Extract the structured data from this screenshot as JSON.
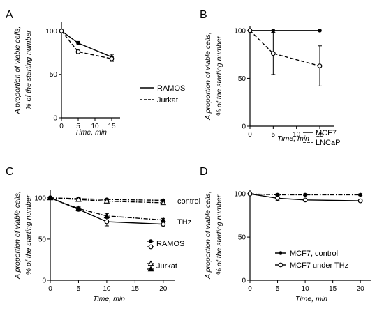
{
  "chart_data": [
    {
      "panel_label": "A",
      "type": "line",
      "xlabel": "Time, min",
      "ylabel": [
        "A proportion of viable cells,",
        "% of the starting number"
      ],
      "xticks": [
        0,
        5,
        10,
        15
      ],
      "yticks": [
        0,
        50,
        100
      ],
      "xlim": [
        0,
        17.5
      ],
      "ylim": [
        0,
        110
      ],
      "legend_position": "right",
      "series": [
        {
          "name": "RAMOS",
          "line": "solid",
          "marker": "filled-circle",
          "x": [
            0,
            5,
            15
          ],
          "y": [
            100,
            86,
            70
          ],
          "err": [
            0,
            2,
            3
          ]
        },
        {
          "name": "Jurkat",
          "line": "dashed",
          "marker": "open-circle",
          "x": [
            0,
            5,
            15
          ],
          "y": [
            100,
            76,
            68
          ],
          "err": [
            0,
            2,
            3
          ]
        }
      ]
    },
    {
      "panel_label": "B",
      "type": "line",
      "xlabel": "Time, min",
      "ylabel": [
        "A proportion of viable cells,",
        "% of the starting number"
      ],
      "xticks": [
        0,
        5,
        10,
        15
      ],
      "yticks": [
        0,
        50,
        100
      ],
      "xlim": [
        0,
        18
      ],
      "ylim": [
        0,
        105
      ],
      "legend_position": "bottom-right",
      "series": [
        {
          "name": "MCF7",
          "line": "solid",
          "marker": "filled-circle",
          "x": [
            0,
            5,
            15
          ],
          "y": [
            100,
            100,
            100
          ],
          "err": [
            0,
            0,
            0
          ]
        },
        {
          "name": "LNCaP",
          "line": "dashed",
          "marker": "open-circle",
          "x": [
            0,
            5,
            15
          ],
          "y": [
            100,
            76,
            63
          ],
          "err": [
            0,
            22,
            21
          ]
        }
      ]
    },
    {
      "panel_label": "C",
      "type": "line",
      "xlabel": "Time, min",
      "ylabel": [
        "A proportion of viable cells,",
        "% of the starting number"
      ],
      "xticks": [
        0,
        5,
        10,
        15,
        20
      ],
      "yticks": [
        0,
        50,
        100
      ],
      "xlim": [
        0,
        22
      ],
      "ylim": [
        0,
        110
      ],
      "annotations": [
        "control",
        "THz"
      ],
      "legend_position": "right",
      "legend_groups": [
        "RAMOS",
        "Jurkat"
      ],
      "series": [
        {
          "group": "RAMOS",
          "condition": "control",
          "line": "dashdot",
          "marker": "filled-circle",
          "x": [
            0,
            5,
            10,
            20
          ],
          "y": [
            100,
            99,
            98,
            97
          ],
          "err": [
            0,
            1,
            1,
            1
          ]
        },
        {
          "group": "RAMOS",
          "condition": "THz",
          "line": "solid",
          "marker": "open-circle",
          "x": [
            0,
            5,
            10,
            20
          ],
          "y": [
            100,
            86,
            71,
            68
          ],
          "err": [
            0,
            2,
            5,
            3
          ]
        },
        {
          "group": "Jurkat",
          "condition": "control",
          "line": "dashdot",
          "marker": "open-triangle",
          "x": [
            0,
            5,
            10,
            20
          ],
          "y": [
            100,
            98,
            96,
            94
          ],
          "err": [
            0,
            1,
            1,
            1
          ]
        },
        {
          "group": "Jurkat",
          "condition": "THz",
          "line": "dashdot",
          "marker": "filled-triangle",
          "x": [
            0,
            5,
            10,
            20
          ],
          "y": [
            100,
            87,
            78,
            73
          ],
          "err": [
            0,
            2,
            3,
            2
          ]
        }
      ]
    },
    {
      "panel_label": "D",
      "type": "line",
      "xlabel": "Time, min",
      "ylabel": [
        "A proportion of viable cells,",
        "% of the starting number"
      ],
      "xticks": [
        0,
        5,
        10,
        15,
        20
      ],
      "yticks": [
        0,
        50,
        100
      ],
      "xlim": [
        0,
        22
      ],
      "ylim": [
        0,
        105
      ],
      "legend_position": "right",
      "series": [
        {
          "name": "MCF7, control",
          "line": "dashdot",
          "marker": "filled-circle",
          "x": [
            0,
            5,
            10,
            20
          ],
          "y": [
            100,
            99,
            99,
            99
          ],
          "err": [
            0,
            1,
            1,
            1
          ]
        },
        {
          "name": "MCF7 under THz",
          "line": "solid",
          "marker": "open-circle",
          "x": [
            0,
            5,
            10,
            20
          ],
          "y": [
            100,
            95,
            93,
            92
          ],
          "err": [
            0,
            3,
            1,
            1
          ]
        }
      ]
    }
  ]
}
